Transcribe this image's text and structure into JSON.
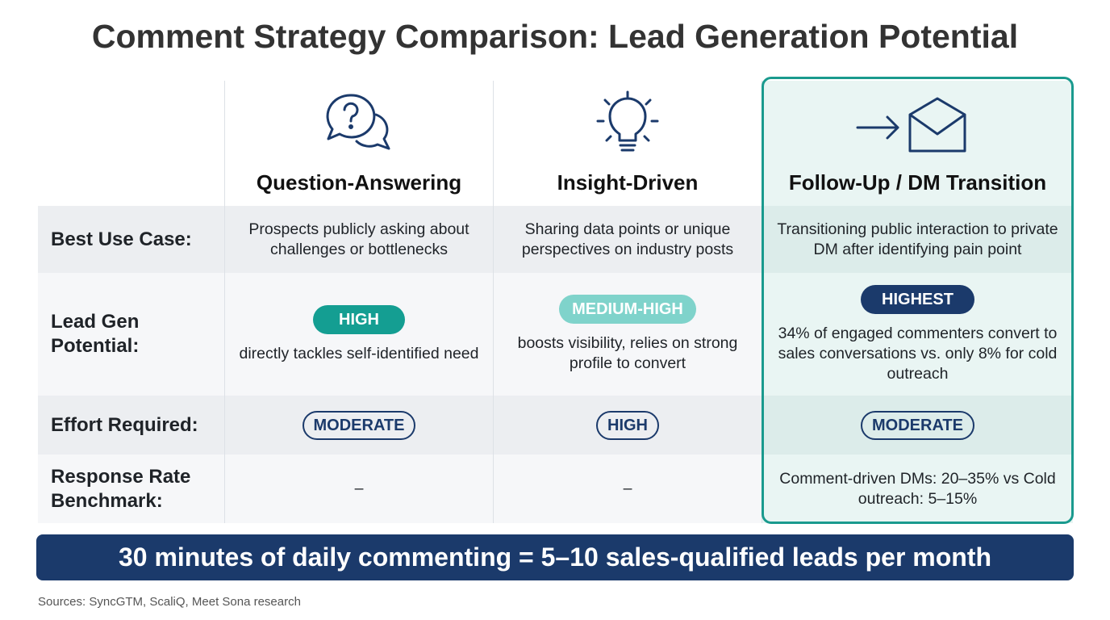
{
  "title": "Comment Strategy Comparison: Lead Generation Potential",
  "columns": [
    "Question-Answering",
    "Insight-Driven",
    "Follow-Up / DM Transition"
  ],
  "rows": [
    {
      "label": "Best Use Case:",
      "cells": [
        {
          "text": "Prospects publicly asking about challenges or bottlenecks"
        },
        {
          "text": "Sharing data points or unique perspectives on industry posts"
        },
        {
          "text": "Transitioning public interaction to private DM after identifying pain point"
        }
      ]
    },
    {
      "label": "Lead Gen Potential:",
      "cells": [
        {
          "badge": "HIGH",
          "text": "directly tackles self-identified need"
        },
        {
          "badge": "MEDIUM-HIGH",
          "text": "boosts visibility, relies on strong profile to convert"
        },
        {
          "badge": "HIGHEST",
          "text": "34% of engaged commenters convert to sales conversations vs. only 8% for cold outreach"
        }
      ]
    },
    {
      "label": "Effort Required:",
      "cells": [
        {
          "badge": "MODERATE"
        },
        {
          "badge": "HIGH"
        },
        {
          "badge": "MODERATE"
        }
      ]
    },
    {
      "label": "Response Rate Benchmark:",
      "cells": [
        {
          "text": "–"
        },
        {
          "text": "–"
        },
        {
          "text": "Comment-driven DMs: 20–35% vs Cold outreach: 5–15%"
        }
      ]
    }
  ],
  "banner": "30 minutes of daily commenting = 5–10 sales-qualified leads per month",
  "sources": "Sources: SyncGTM, ScaliQ, Meet Sona research"
}
